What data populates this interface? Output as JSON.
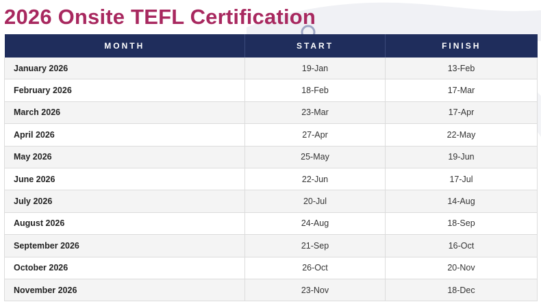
{
  "page": {
    "title": "2026 Onsite TEFL Certification"
  },
  "colors": {
    "title": "#a8285f",
    "header_bg": "#1f2d5c",
    "header_text": "#ffffff",
    "row_alt": "#f4f4f4"
  },
  "table": {
    "headers": [
      "MONTH",
      "START",
      "FINISH"
    ],
    "rows": [
      {
        "month": "January 2026",
        "start": "19-Jan",
        "finish": "13-Feb"
      },
      {
        "month": "February 2026",
        "start": "18-Feb",
        "finish": "17-Mar"
      },
      {
        "month": "March 2026",
        "start": "23-Mar",
        "finish": "17-Apr"
      },
      {
        "month": "April 2026",
        "start": "27-Apr",
        "finish": "22-May"
      },
      {
        "month": "May 2026",
        "start": "25-May",
        "finish": "19-Jun"
      },
      {
        "month": "June 2026",
        "start": "22-Jun",
        "finish": "17-Jul"
      },
      {
        "month": "July 2026",
        "start": "20-Jul",
        "finish": "14-Aug"
      },
      {
        "month": "August 2026",
        "start": "24-Aug",
        "finish": "18-Sep"
      },
      {
        "month": "September 2026",
        "start": "21-Sep",
        "finish": "16-Oct"
      },
      {
        "month": "October 2026",
        "start": "26-Oct",
        "finish": "20-Nov"
      },
      {
        "month": "November 2026",
        "start": "23-Nov",
        "finish": "18-Dec"
      }
    ]
  }
}
